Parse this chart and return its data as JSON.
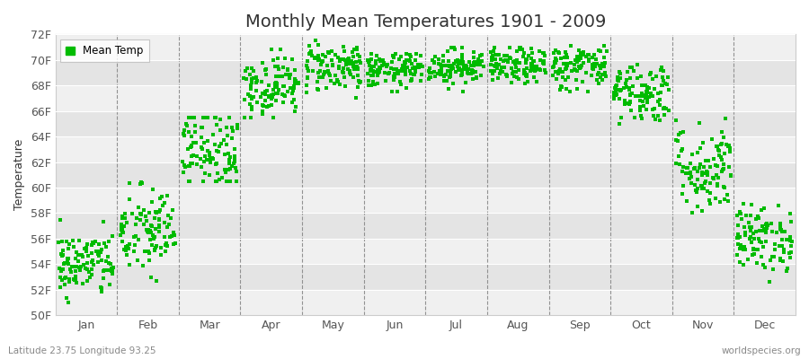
{
  "title": "Monthly Mean Temperatures 1901 - 2009",
  "ylabel": "Temperature",
  "xlabel_bottom_left": "Latitude 23.75 Longitude 93.25",
  "xlabel_bottom_right": "worldspecies.org",
  "legend_label": "Mean Temp",
  "dot_color": "#00bb00",
  "fig_bg_color": "#ffffff",
  "plot_bg_color": "#f0f0f0",
  "ylim": [
    50,
    72
  ],
  "yticks": [
    50,
    52,
    54,
    56,
    58,
    60,
    62,
    64,
    66,
    68,
    70,
    72
  ],
  "ytick_labels": [
    "50F",
    "52F",
    "54F",
    "56F",
    "58F",
    "60F",
    "62F",
    "64F",
    "66F",
    "68F",
    "70F",
    "72F"
  ],
  "months": [
    "Jan",
    "Feb",
    "Mar",
    "Apr",
    "May",
    "Jun",
    "Jul",
    "Aug",
    "Sep",
    "Oct",
    "Nov",
    "Dec"
  ],
  "month_params": {
    "Jan": {
      "mean": 54.0,
      "spread": 1.3,
      "min_v": 51.0,
      "max_v": 57.5
    },
    "Feb": {
      "mean": 56.5,
      "spread": 1.8,
      "min_v": 51.5,
      "max_v": 60.5
    },
    "Mar": {
      "mean": 63.0,
      "spread": 1.8,
      "min_v": 60.5,
      "max_v": 65.5
    },
    "Apr": {
      "mean": 68.0,
      "spread": 1.2,
      "min_v": 65.5,
      "max_v": 70.8
    },
    "May": {
      "mean": 69.5,
      "spread": 1.0,
      "min_v": 67.0,
      "max_v": 71.5
    },
    "Jun": {
      "mean": 69.2,
      "spread": 0.7,
      "min_v": 67.5,
      "max_v": 70.5
    },
    "Jul": {
      "mean": 69.5,
      "spread": 0.7,
      "min_v": 67.5,
      "max_v": 71.0
    },
    "Aug": {
      "mean": 69.5,
      "spread": 0.7,
      "min_v": 67.5,
      "max_v": 71.0
    },
    "Sep": {
      "mean": 69.5,
      "spread": 0.9,
      "min_v": 67.5,
      "max_v": 71.5
    },
    "Oct": {
      "mean": 67.5,
      "spread": 1.2,
      "min_v": 65.0,
      "max_v": 70.5
    },
    "Nov": {
      "mean": 61.5,
      "spread": 1.8,
      "min_v": 58.0,
      "max_v": 65.5
    },
    "Dec": {
      "mean": 56.0,
      "spread": 1.3,
      "min_v": 52.5,
      "max_v": 59.5
    }
  },
  "n_years": 109,
  "title_fontsize": 14,
  "axis_label_fontsize": 9,
  "tick_fontsize": 9,
  "dot_size": 6,
  "figsize": [
    9.0,
    4.0
  ],
  "dpi": 100
}
